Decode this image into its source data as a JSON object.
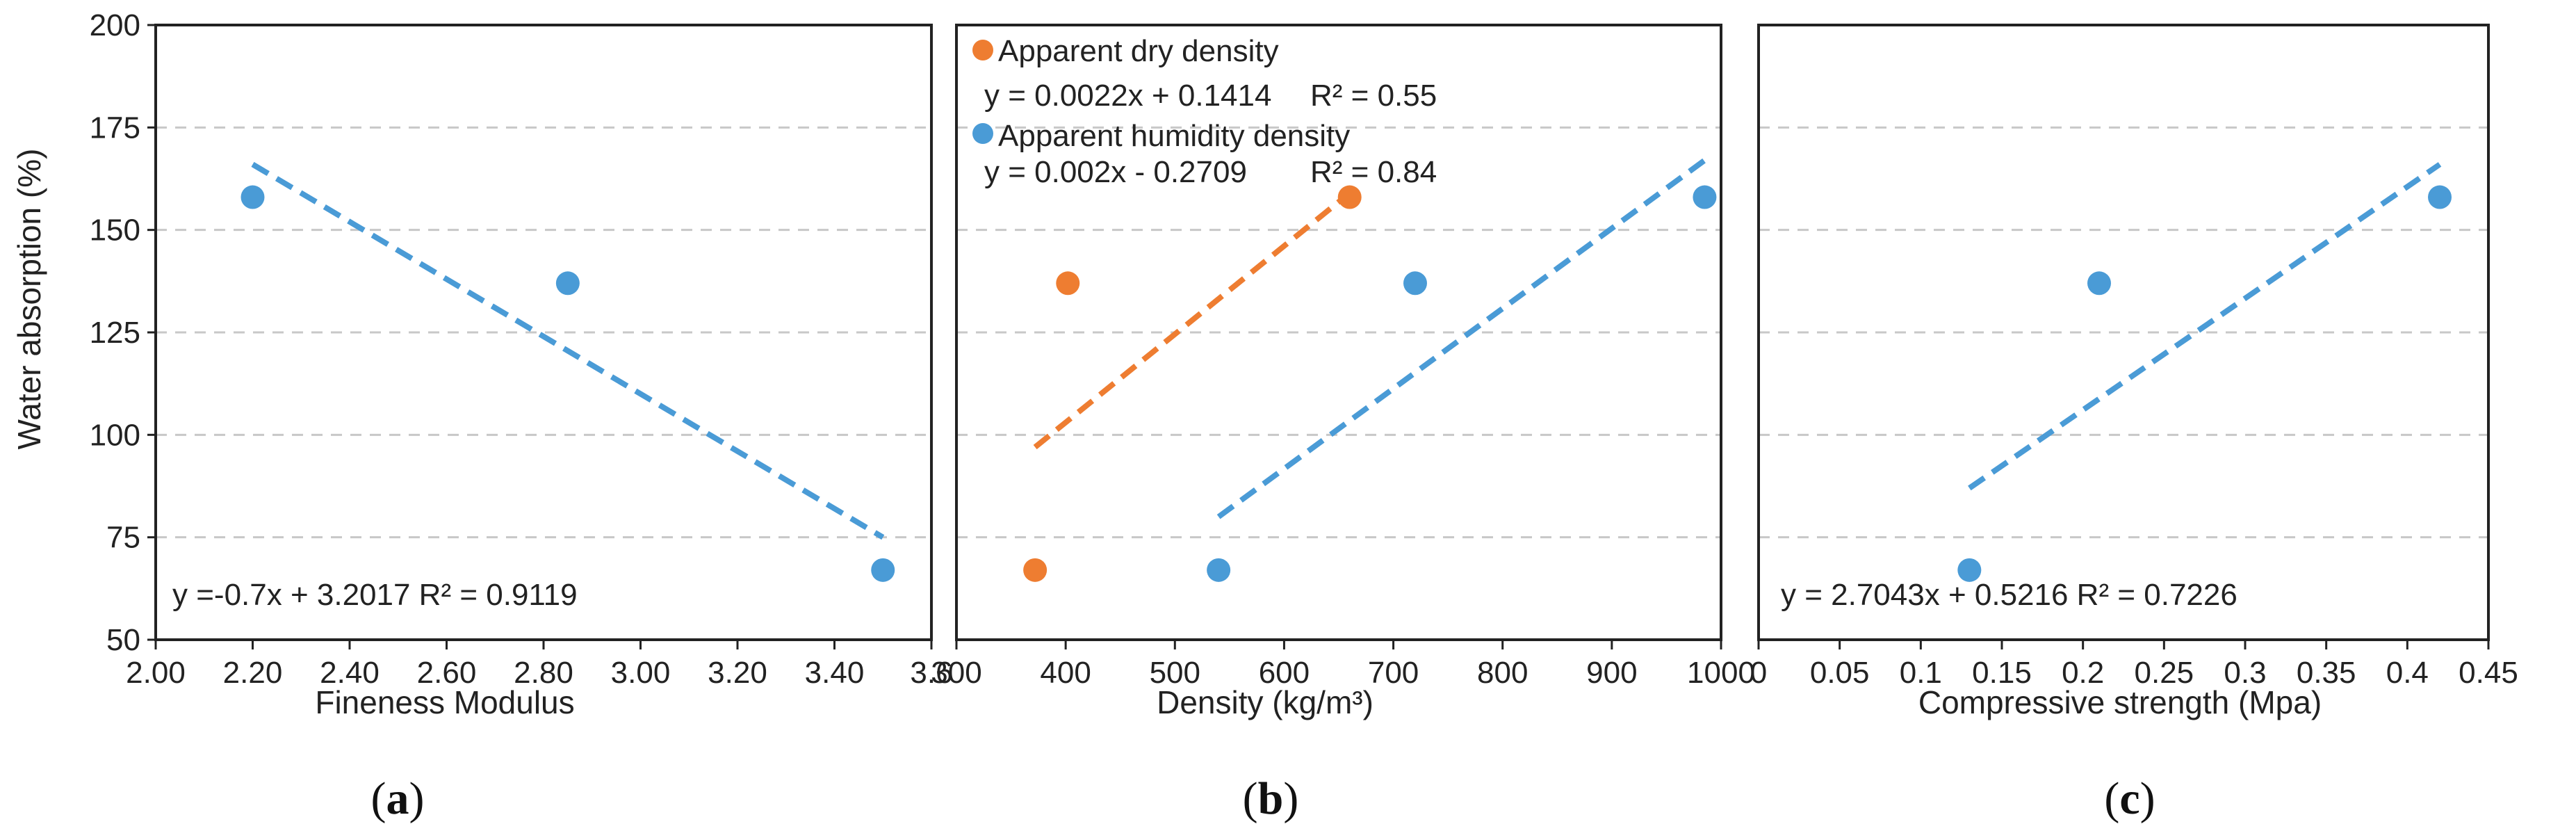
{
  "figure": {
    "ylabel": "Water absorption (%)",
    "colors": {
      "blue": "#4a9bd6",
      "orange": "#ee7d31",
      "grid": "#c8c8c8",
      "frame": "#222222"
    }
  },
  "chart_data": [
    {
      "type": "scatter",
      "panel": "a",
      "panel_label": "a",
      "xlabel": "Fineness Modulus",
      "ylabel": "Water absorption (%)",
      "xlim": [
        2.0,
        3.6
      ],
      "ylim": [
        50,
        200
      ],
      "xticks": [
        2.0,
        2.2,
        2.4,
        2.6,
        2.8,
        3.0,
        3.2,
        3.4,
        3.6
      ],
      "xtick_labels": [
        "2.00",
        "2.20",
        "2.40",
        "2.60",
        "2.80",
        "3.00",
        "3.20",
        "3.40",
        "3.6"
      ],
      "yticks": [
        50,
        75,
        100,
        125,
        150,
        175,
        200
      ],
      "ytick_labels": [
        "50",
        "75",
        "100",
        "125",
        "150",
        "175",
        "200"
      ],
      "grid": "horizontal dashed",
      "series": [
        {
          "name": "Fineness Modulus",
          "color": "#4a9bd6",
          "x": [
            2.2,
            2.85,
            3.5
          ],
          "y": [
            158,
            137,
            67
          ],
          "trendline": {
            "x": [
              2.2,
              3.5
            ],
            "y": [
              166,
              75
            ]
          }
        }
      ],
      "annotations": [
        {
          "text": "y =-0.7x + 3.2017 R² = 0.9119",
          "position": "bottom-left"
        }
      ]
    },
    {
      "type": "scatter",
      "panel": "b",
      "panel_label": "b",
      "xlabel": "Density (kg/m³)",
      "xlim": [
        300,
        1000
      ],
      "ylim": [
        50,
        200
      ],
      "xticks": [
        300,
        400,
        500,
        600,
        700,
        800,
        900,
        1000
      ],
      "xtick_labels": [
        "300",
        "400",
        "500",
        "600",
        "700",
        "800",
        "900",
        "1000"
      ],
      "yticks": [
        50,
        75,
        100,
        125,
        150,
        175,
        200
      ],
      "grid": "horizontal dashed",
      "legend_position": "top-left",
      "series": [
        {
          "name": "Apparent dry density",
          "color": "#ee7d31",
          "x": [
            372,
            402,
            660
          ],
          "y": [
            67,
            137,
            158
          ],
          "trendline": {
            "x": [
              372,
              660
            ],
            "y": [
              97,
              159
            ]
          },
          "equation": "y = 0.0022x + 0.1414",
          "r2": "R² = 0.55"
        },
        {
          "name": "Apparent humidity density",
          "color": "#4a9bd6",
          "x": [
            540,
            720,
            985
          ],
          "y": [
            67,
            137,
            158
          ],
          "trendline": {
            "x": [
              540,
              985
            ],
            "y": [
              80,
              167
            ]
          },
          "equation": "y = 0.002x - 0.2709",
          "r2": "R² = 0.84"
        }
      ]
    },
    {
      "type": "scatter",
      "panel": "c",
      "panel_label": "c",
      "xlabel": "Compressive strength (Mpa)",
      "xlim": [
        0,
        0.45
      ],
      "ylim": [
        50,
        200
      ],
      "xticks": [
        0,
        0.05,
        0.1,
        0.15,
        0.2,
        0.25,
        0.3,
        0.35,
        0.4,
        0.45
      ],
      "xtick_labels": [
        "0",
        "0.05",
        "0.1",
        "0.15",
        "0.2",
        "0.25",
        "0.3",
        "0.35",
        "0.4",
        "0.45"
      ],
      "yticks": [
        50,
        75,
        100,
        125,
        150,
        175,
        200
      ],
      "grid": "horizontal dashed",
      "series": [
        {
          "name": "Compressive strength",
          "color": "#4a9bd6",
          "x": [
            0.13,
            0.21,
            0.42
          ],
          "y": [
            67,
            137,
            158
          ],
          "trendline": {
            "x": [
              0.13,
              0.42
            ],
            "y": [
              87,
              166
            ]
          }
        }
      ],
      "annotations": [
        {
          "text": "y = 2.7043x + 0.5216 R² = 0.7226",
          "position": "bottom-left"
        }
      ]
    }
  ]
}
